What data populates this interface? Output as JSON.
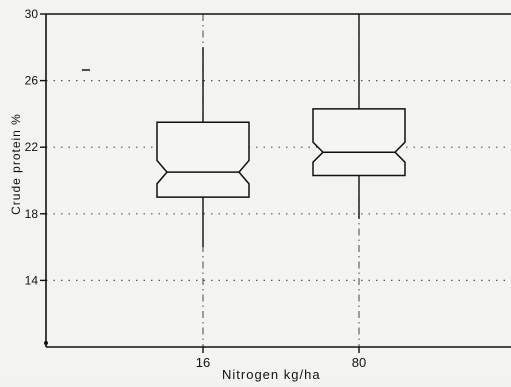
{
  "chart_data": {
    "type": "box",
    "categories": [
      "16",
      "80"
    ],
    "boxes": [
      {
        "category": "16",
        "whisker_low": 16.0,
        "q1": 19.0,
        "median": 20.5,
        "q3": 23.5,
        "whisker_high": 28.0,
        "notch_low": 19.8,
        "notch_high": 21.2
      },
      {
        "category": "80",
        "whisker_low": 17.7,
        "q1": 20.3,
        "median": 21.7,
        "q3": 24.3,
        "whisker_high": 30.0,
        "notch_low": 21.1,
        "notch_high": 22.3
      }
    ],
    "xlabel": "Nitrogen kg/ha",
    "ylabel": "Crude protein %",
    "yticks": [
      "30",
      "26",
      "22",
      "18",
      "14"
    ],
    "ylim": [
      10,
      30
    ],
    "grid": true
  }
}
